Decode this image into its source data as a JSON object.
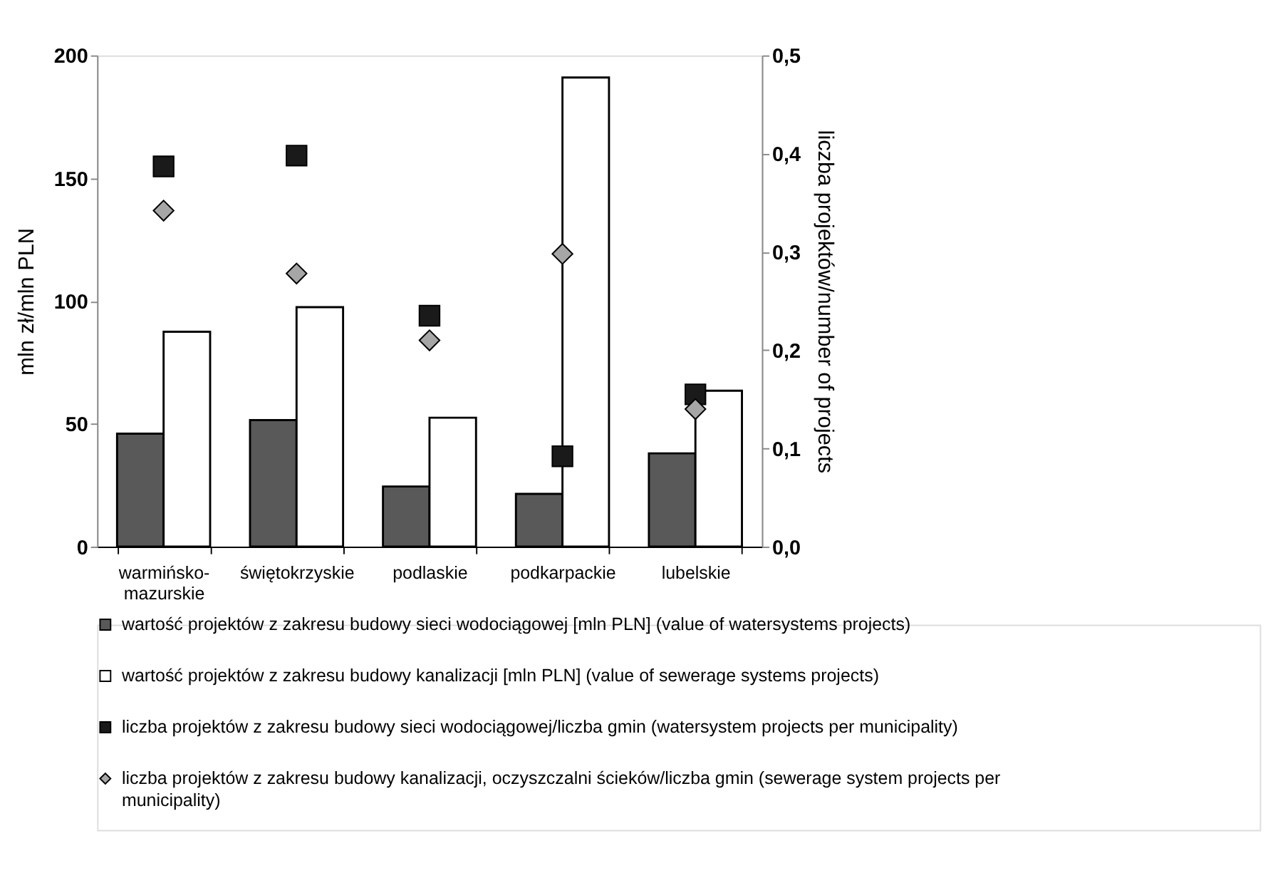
{
  "chart_data": {
    "type": "bar",
    "categories": [
      "warmińsko-mazurskie",
      "świętokrzyskie",
      "podlaskie",
      "podkarpackie",
      "lubelskie"
    ],
    "ylabel": "mln zł/mln PLN",
    "y2label": "liczba projektów/number of projects",
    "ylim": [
      0,
      200
    ],
    "yticks": [
      0,
      50,
      100,
      150,
      200
    ],
    "y2lim": [
      0,
      0.5
    ],
    "y2ticks": [
      {
        "value": 0,
        "label": "0,0"
      },
      {
        "value": 0.1,
        "label": "0,1"
      },
      {
        "value": 0.2,
        "label": "0,2"
      },
      {
        "value": 0.3,
        "label": "0,3"
      },
      {
        "value": 0.4,
        "label": "0,4"
      },
      {
        "value": 0.5,
        "label": "0,5"
      }
    ],
    "grid": false,
    "legend": "bottom",
    "series": [
      {
        "name": "wartość projektów z zakresu budowy sieci wodociągowej [mln PLN] (value of watersystems projects)",
        "type": "bar",
        "color": "#595959",
        "values": [
          46,
          51.5,
          24.5,
          21.5,
          38
        ]
      },
      {
        "name": "wartość projektów z zakresu budowy kanalizacji [mln PLN] (value of sewerage systems projects)",
        "type": "bar",
        "color": "#ffffff",
        "values": [
          87.5,
          97.5,
          52.5,
          191,
          63.5
        ]
      },
      {
        "name": "liczba projektów z zakresu budowy sieci wodociągowej/liczba gmin (watersystem projects per municipality)",
        "type": "scatter",
        "marker": "square",
        "axis": "y2",
        "color": "#1a1a1a",
        "values": [
          0.387,
          0.398,
          0.235,
          0.092,
          0.155
        ]
      },
      {
        "name": "liczba projektów z zakresu budowy kanalizacji, oczyszczalni ścieków/liczba gmin (sewerage system projects per municipality)",
        "type": "scatter",
        "marker": "diamond",
        "axis": "y2",
        "color": "#a6a6a6",
        "values": [
          0.342,
          0.278,
          0.21,
          0.298,
          0.14
        ]
      }
    ]
  }
}
